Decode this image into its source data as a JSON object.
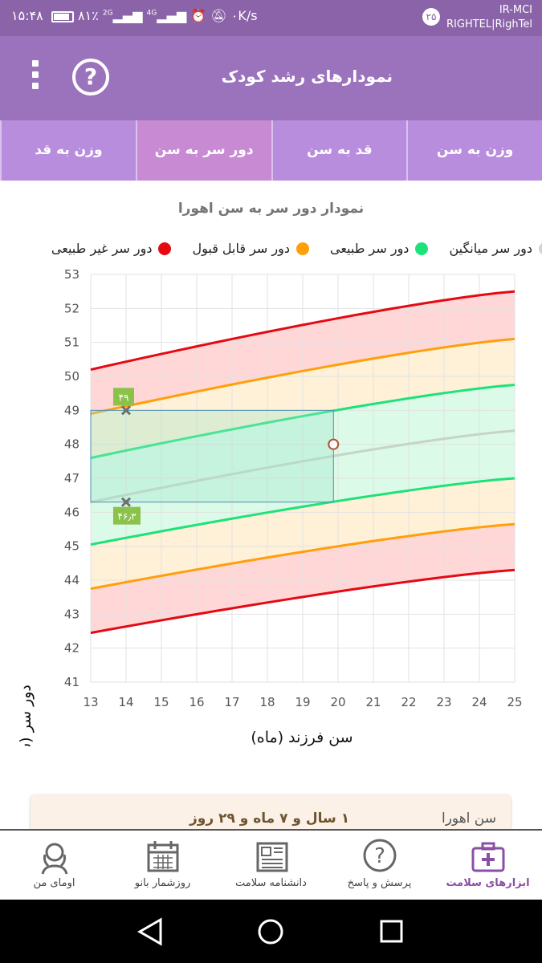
{
  "status_bar": {
    "time": "۱۵:۴۸",
    "battery": "۸۱٪",
    "network_2g": "2G",
    "network_4g": "4G",
    "speed": "۰K/s",
    "badge": "۲۵",
    "carrier_line1": "IR-MCI",
    "carrier_line2": "RIGHTEL|RighTel"
  },
  "app_bar": {
    "title": "نمودارهای رشد کودک",
    "help_icon": "?",
    "menu_icon": "overflow-menu-icon"
  },
  "tabs": [
    {
      "label": "وزن به سن",
      "active": false
    },
    {
      "label": "قد به سن",
      "active": false
    },
    {
      "label": "دور سر به سن",
      "active": true
    },
    {
      "label": "وزن به قد",
      "active": false
    }
  ],
  "chart_title": "نمودار دور سر به سن اهورا",
  "legend": [
    {
      "label": "دور سر غیر طبیعی",
      "color": "#e50914"
    },
    {
      "label": "دور سر قابل قبول",
      "color": "#ff9f0a"
    },
    {
      "label": "دور سر طبیعی",
      "color": "#1de27a"
    },
    {
      "label": "دور سر میانگین",
      "color": "#d3d3d3"
    }
  ],
  "chart_data": {
    "type": "line",
    "xlabel": "سن فرزند (ماه)",
    "ylabel": "دور سر (سانتیمتر)",
    "xlim": [
      13,
      25
    ],
    "ylim": [
      41,
      53
    ],
    "x_ticks": [
      13,
      14,
      15,
      16,
      17,
      18,
      19,
      20,
      21,
      22,
      23,
      24,
      25
    ],
    "y_ticks": [
      41,
      42,
      43,
      44,
      45,
      46,
      47,
      48,
      49,
      50,
      51,
      52,
      53
    ],
    "x": [
      13,
      25
    ],
    "series": [
      {
        "name": "دور سر غیر طبیعی",
        "color": "#e50914",
        "values": [
          50.2,
          52.5
        ]
      },
      {
        "name": "دور سر قابل قبول",
        "color": "#ff9f0a",
        "values": [
          48.9,
          51.1
        ]
      },
      {
        "name": "دور سر طبیعی",
        "color": "#1de27a",
        "values": [
          47.6,
          49.75
        ]
      },
      {
        "name": "دور سر میانگین",
        "color": "#c8d3c8",
        "values": [
          46.3,
          48.4
        ]
      },
      {
        "name": "دور سر طبیعی",
        "color": "#1de27a",
        "values": [
          45.05,
          47.0
        ]
      },
      {
        "name": "دور سر قابل قبول",
        "color": "#ff9f0a",
        "values": [
          43.75,
          45.65
        ]
      },
      {
        "name": "دور سر غیر طبیعی",
        "color": "#e50914",
        "values": [
          42.45,
          44.3
        ]
      }
    ],
    "markers": [
      {
        "x": 14,
        "y": 49,
        "label": "۴۹"
      },
      {
        "x": 14,
        "y": 46.3,
        "label": "۴۶٫۳"
      }
    ],
    "current_point": {
      "x": 19.87,
      "y": 48
    },
    "highlight_range": {
      "x": [
        13,
        19.87
      ],
      "y": [
        46.3,
        49
      ]
    }
  },
  "age_card": {
    "label": "سن اهورا",
    "value": "۱ سال و ۷ ماه و ۲۹ روز"
  },
  "bottom_nav": [
    {
      "label": "ابزارهای سلامت",
      "icon": "medical-kit-icon",
      "active": true
    },
    {
      "label": "پرسش و پاسخ",
      "icon": "question-bubble-icon",
      "active": false
    },
    {
      "label": "دانشنامه سلامت",
      "icon": "newspaper-icon",
      "active": false
    },
    {
      "label": "روزشمار بانو",
      "icon": "calendar-icon",
      "active": false
    },
    {
      "label": "اومای من",
      "icon": "woman-avatar-icon",
      "active": false
    }
  ]
}
